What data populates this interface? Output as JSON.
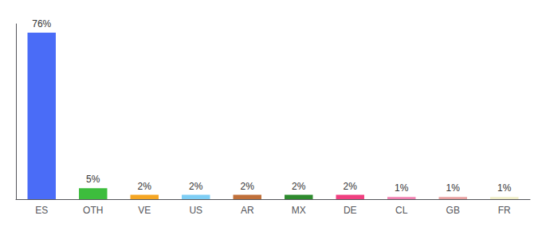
{
  "chart_data": {
    "type": "bar",
    "categories": [
      "ES",
      "OTH",
      "VE",
      "US",
      "AR",
      "MX",
      "DE",
      "CL",
      "GB",
      "FR"
    ],
    "values": [
      76,
      5,
      2,
      2,
      2,
      2,
      2,
      1,
      1,
      1
    ],
    "value_labels": [
      "76%",
      "5%",
      "2%",
      "2%",
      "2%",
      "2%",
      "2%",
      "1%",
      "1%",
      "1%"
    ],
    "colors": [
      "#4a6cf7",
      "#3dbd3d",
      "#f5a623",
      "#7ecef5",
      "#c0703a",
      "#2e8b2e",
      "#f04080",
      "#f080b0",
      "#e8a0a0",
      "#f0eec8"
    ],
    "ylim": [
      0,
      80
    ],
    "data_labels": true,
    "tick_labels": "x",
    "grid": false
  }
}
